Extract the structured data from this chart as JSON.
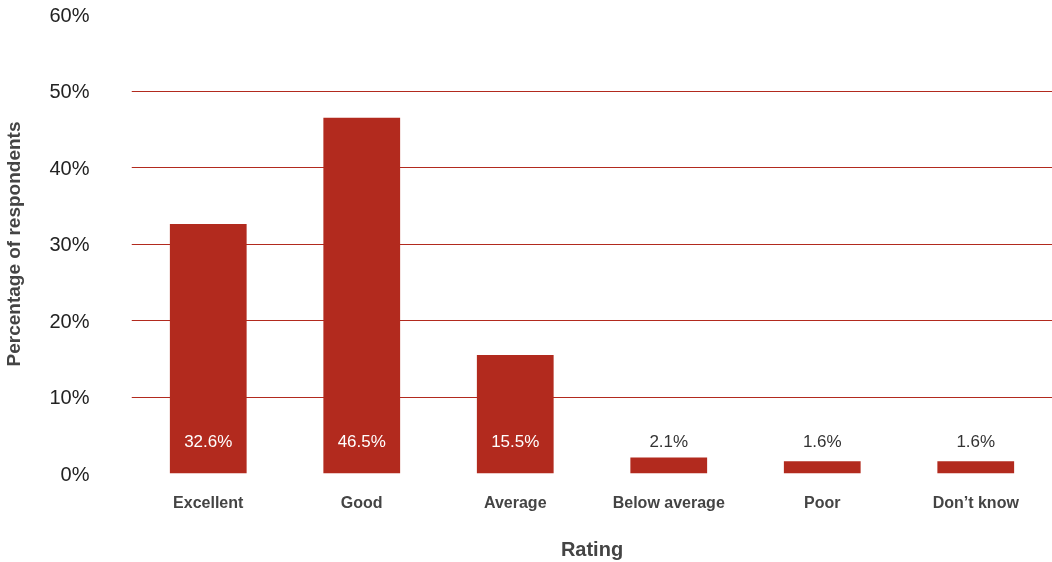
{
  "chart_data": {
    "type": "bar",
    "xlabel": "Rating",
    "ylabel": "Percentage of respondents",
    "categories": [
      "Excellent",
      "Good",
      "Average",
      "Below average",
      "Poor",
      "Don’t know"
    ],
    "values": [
      32.6,
      46.5,
      15.5,
      2.1,
      1.6,
      1.6
    ],
    "value_labels": [
      "32.6%",
      "46.5%",
      "15.5%",
      "2.1%",
      "1.6%",
      "1.6%"
    ],
    "color": "#b22a1e",
    "ylim": [
      0,
      60
    ],
    "yticks": [
      {
        "value": 0,
        "label": "0%"
      },
      {
        "value": 10,
        "label": "10%"
      },
      {
        "value": 20,
        "label": "20%"
      },
      {
        "value": 30,
        "label": "30%"
      },
      {
        "value": 40,
        "label": "40%"
      },
      {
        "value": 50,
        "label": "50%"
      },
      {
        "value": 60,
        "label": "60%"
      }
    ],
    "grid": "y"
  }
}
